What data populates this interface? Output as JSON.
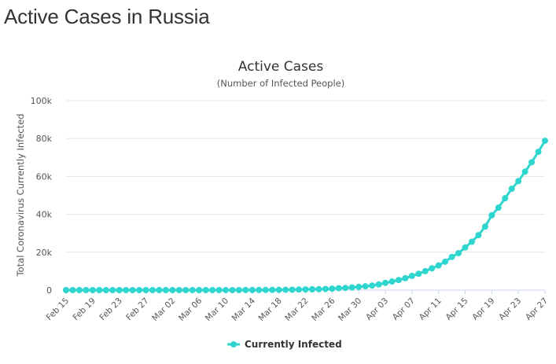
{
  "page": {
    "title": "Active Cases in Russia"
  },
  "chart_data": {
    "type": "line",
    "title": "Active Cases",
    "subtitle": "(Number of Infected People)",
    "ylabel": "Total Coronavirus Currently Infected",
    "xlabel": "",
    "ylim": [
      0,
      100000
    ],
    "yticks": [
      0,
      20000,
      40000,
      60000,
      80000,
      100000
    ],
    "ytick_labels": [
      "0",
      "20k",
      "40k",
      "60k",
      "80k",
      "100k"
    ],
    "x_start": "2020-02-15",
    "x_ticks": [
      "Feb 15",
      "Feb 19",
      "Feb 23",
      "Feb 27",
      "Mar 02",
      "Mar 06",
      "Mar 10",
      "Mar 14",
      "Mar 18",
      "Mar 22",
      "Mar 26",
      "Mar 30",
      "Apr 03",
      "Apr 07",
      "Apr 11",
      "Apr 15",
      "Apr 19",
      "Apr 23",
      "Apr 27"
    ],
    "grid": true,
    "legend_position": "bottom-center",
    "colors": {
      "series": "#2fd6cf",
      "grid": "#e6e6e6",
      "axis": "#ccd6eb"
    },
    "series": [
      {
        "name": "Currently Infected",
        "x": [
          "2020-02-15",
          "2020-02-16",
          "2020-02-17",
          "2020-02-18",
          "2020-02-19",
          "2020-02-20",
          "2020-02-21",
          "2020-02-22",
          "2020-02-23",
          "2020-02-24",
          "2020-02-25",
          "2020-02-26",
          "2020-02-27",
          "2020-02-28",
          "2020-02-29",
          "2020-03-01",
          "2020-03-02",
          "2020-03-03",
          "2020-03-04",
          "2020-03-05",
          "2020-03-06",
          "2020-03-07",
          "2020-03-08",
          "2020-03-09",
          "2020-03-10",
          "2020-03-11",
          "2020-03-12",
          "2020-03-13",
          "2020-03-14",
          "2020-03-15",
          "2020-03-16",
          "2020-03-17",
          "2020-03-18",
          "2020-03-19",
          "2020-03-20",
          "2020-03-21",
          "2020-03-22",
          "2020-03-23",
          "2020-03-24",
          "2020-03-25",
          "2020-03-26",
          "2020-03-27",
          "2020-03-28",
          "2020-03-29",
          "2020-03-30",
          "2020-03-31",
          "2020-04-01",
          "2020-04-02",
          "2020-04-03",
          "2020-04-04",
          "2020-04-05",
          "2020-04-06",
          "2020-04-07",
          "2020-04-08",
          "2020-04-09",
          "2020-04-10",
          "2020-04-11",
          "2020-04-12",
          "2020-04-13",
          "2020-04-14",
          "2020-04-15",
          "2020-04-16",
          "2020-04-17",
          "2020-04-18",
          "2020-04-19",
          "2020-04-20",
          "2020-04-21",
          "2020-04-22",
          "2020-04-23",
          "2020-04-24",
          "2020-04-25",
          "2020-04-26",
          "2020-04-27"
        ],
        "values": [
          0,
          0,
          0,
          0,
          0,
          0,
          0,
          0,
          0,
          0,
          0,
          0,
          0,
          0,
          0,
          0,
          0,
          0,
          0,
          2,
          4,
          5,
          6,
          8,
          10,
          15,
          25,
          40,
          55,
          60,
          85,
          110,
          130,
          180,
          230,
          290,
          360,
          420,
          470,
          580,
          770,
          1000,
          1150,
          1400,
          1700,
          2000,
          2400,
          3000,
          3800,
          4500,
          5300,
          6300,
          7500,
          8600,
          10000,
          11500,
          13000,
          15000,
          17500,
          19500,
          22500,
          25500,
          29000,
          33500,
          39500,
          43500,
          48500,
          53500,
          57500,
          62500,
          67500,
          73000,
          78800
        ]
      }
    ]
  }
}
